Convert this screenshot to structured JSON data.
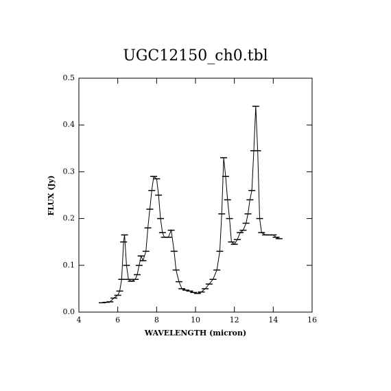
{
  "chart_data": {
    "type": "line",
    "title": "UGC12150_ch0.tbl",
    "x_label": "WAVELENGTH (micron)",
    "y_label": "FLUX (Jy)",
    "x": [
      5.2,
      5.4,
      5.6,
      5.8,
      6.0,
      6.1,
      6.2,
      6.3,
      6.35,
      6.45,
      6.55,
      6.7,
      6.9,
      7.0,
      7.1,
      7.2,
      7.3,
      7.45,
      7.55,
      7.65,
      7.75,
      7.85,
      8.0,
      8.1,
      8.2,
      8.3,
      8.4,
      8.6,
      8.75,
      8.9,
      9.0,
      9.15,
      9.3,
      9.5,
      9.7,
      9.9,
      10.1,
      10.3,
      10.5,
      10.7,
      10.9,
      11.1,
      11.25,
      11.35,
      11.45,
      11.55,
      11.65,
      11.75,
      11.85,
      12.0,
      12.15,
      12.3,
      12.45,
      12.6,
      12.7,
      12.8,
      12.9,
      13.0,
      13.1,
      13.2,
      13.3,
      13.4,
      13.6,
      13.8,
      14.0,
      14.15,
      14.3
    ],
    "series": [
      {
        "name": "UGC12150",
        "color": "#000000",
        "values": [
          0.02,
          0.021,
          0.022,
          0.03,
          0.036,
          0.045,
          0.07,
          0.15,
          0.165,
          0.1,
          0.07,
          0.066,
          0.07,
          0.08,
          0.1,
          0.12,
          0.11,
          0.13,
          0.18,
          0.22,
          0.26,
          0.29,
          0.285,
          0.25,
          0.2,
          0.17,
          0.16,
          0.16,
          0.175,
          0.13,
          0.09,
          0.065,
          0.05,
          0.047,
          0.045,
          0.042,
          0.04,
          0.043,
          0.05,
          0.06,
          0.07,
          0.09,
          0.13,
          0.21,
          0.33,
          0.29,
          0.24,
          0.2,
          0.15,
          0.145,
          0.155,
          0.17,
          0.175,
          0.19,
          0.21,
          0.24,
          0.26,
          0.345,
          0.44,
          0.345,
          0.2,
          0.17,
          0.165,
          0.165,
          0.165,
          0.16,
          0.157
        ]
      }
    ],
    "xlim": [
      4,
      16
    ],
    "ylim": [
      0,
      0.5
    ],
    "xticks": [
      4,
      6,
      8,
      10,
      12,
      14,
      16
    ],
    "yticks": [
      {
        "value": 0,
        "label": "0.0"
      },
      0.1,
      0.2,
      0.3,
      0.4,
      0.5
    ]
  }
}
